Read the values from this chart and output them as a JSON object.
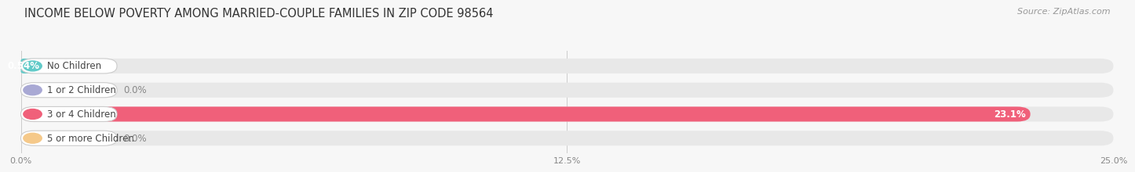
{
  "title": "INCOME BELOW POVERTY AMONG MARRIED-COUPLE FAMILIES IN ZIP CODE 98564",
  "source": "Source: ZipAtlas.com",
  "categories": [
    "No Children",
    "1 or 2 Children",
    "3 or 4 Children",
    "5 or more Children"
  ],
  "values": [
    0.54,
    0.0,
    23.1,
    0.0
  ],
  "bar_colors": [
    "#62cac8",
    "#a9a9d4",
    "#f0607a",
    "#f5c98a"
  ],
  "value_labels": [
    "0.54%",
    "0.0%",
    "23.1%",
    "0.0%"
  ],
  "xlim": [
    0,
    25.0
  ],
  "xticks": [
    0.0,
    12.5,
    25.0
  ],
  "xticklabels": [
    "0.0%",
    "12.5%",
    "25.0%"
  ],
  "bar_bg_color": "#e8e8e8",
  "title_fontsize": 10.5,
  "source_fontsize": 8,
  "label_fontsize": 8.5,
  "value_fontsize": 8.5,
  "fig_bg_color": "#f7f7f7"
}
